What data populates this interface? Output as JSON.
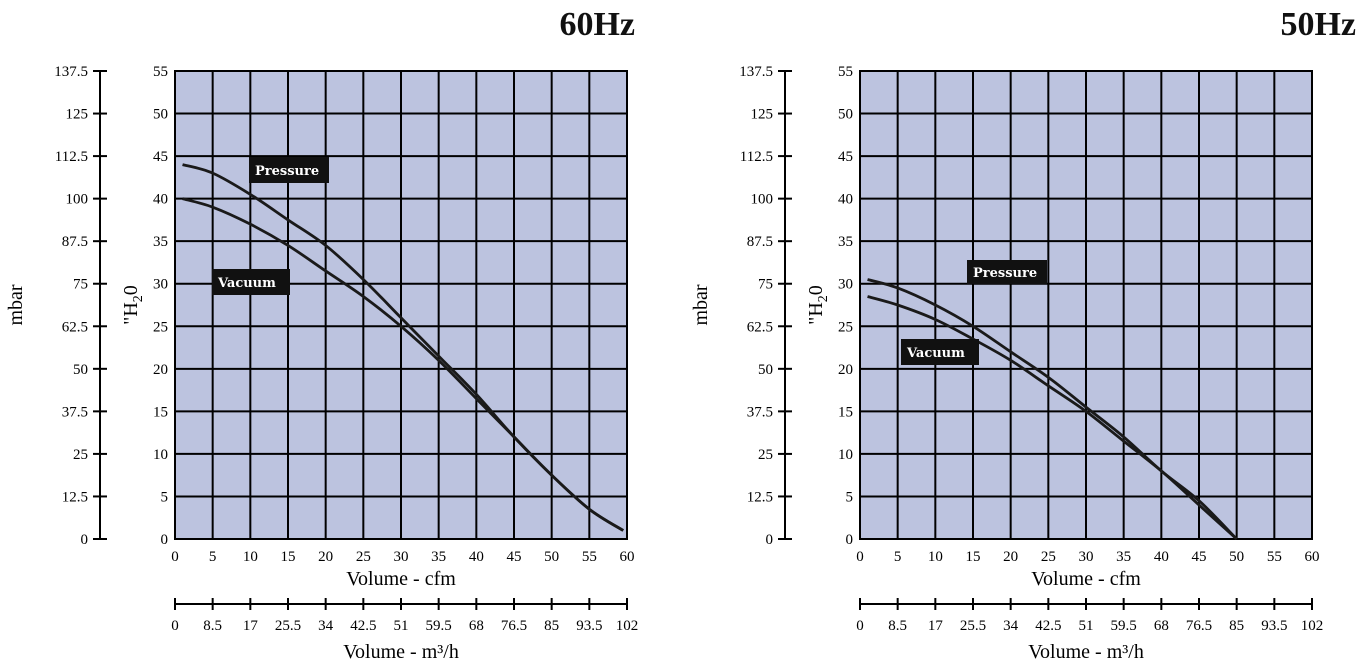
{
  "charts": [
    {
      "frequency_label": "60Hz",
      "mbar_axis_label": "mbar",
      "h2o_axis_label_prefix": "\"H",
      "h2o_axis_label_sub": "2",
      "h2o_axis_label_suffix": "0",
      "cfm_axis_label": "Volume - cfm",
      "m3h_axis_label": "Volume - m³/h",
      "pressure_label": "Pressure",
      "vacuum_label": "Vacuum",
      "colors": {
        "plot_bg": "#bcc3df",
        "grid": "#000000",
        "curve": "#1a1a1a",
        "label_bg": "#111111"
      }
    },
    {
      "frequency_label": "50Hz",
      "mbar_axis_label": "mbar",
      "h2o_axis_label_prefix": "\"H",
      "h2o_axis_label_sub": "2",
      "h2o_axis_label_suffix": "0",
      "cfm_axis_label": "Volume - cfm",
      "m3h_axis_label": "Volume - m³/h",
      "pressure_label": "Pressure",
      "vacuum_label": "Vacuum",
      "colors": {
        "plot_bg": "#bcc3df",
        "grid": "#000000",
        "curve": "#1a1a1a",
        "label_bg": "#111111"
      }
    }
  ],
  "chart_data": [
    {
      "type": "line",
      "title": "60Hz",
      "xlabel": "Volume - cfm",
      "ylabel": "\"H20",
      "secondary_x_label": "Volume - m³/h",
      "secondary_y_label": "mbar",
      "xlim": [
        0,
        60
      ],
      "ylim": [
        0,
        55
      ],
      "x_ticks": [
        "0",
        "5",
        "10",
        "15",
        "20",
        "25",
        "30",
        "35",
        "40",
        "45",
        "50",
        "55",
        "60"
      ],
      "y_ticks": [
        "0",
        "5",
        "10",
        "15",
        "20",
        "25",
        "30",
        "35",
        "40",
        "45",
        "50",
        "55"
      ],
      "m3h_ticks": [
        "0",
        "8.5",
        "17",
        "25.5",
        "34",
        "42.5",
        "51",
        "59.5",
        "68",
        "76.5",
        "85",
        "93.5",
        "102"
      ],
      "mbar_ticks": [
        "0",
        "12.5",
        "25",
        "37.5",
        "50",
        "62.5",
        "75",
        "87.5",
        "100",
        "112.5",
        "125",
        "137.5"
      ],
      "grid": true,
      "series": [
        {
          "name": "Pressure",
          "x": [
            1,
            5,
            10,
            15,
            20,
            25,
            30,
            35,
            40,
            45,
            50,
            55,
            59.5
          ],
          "y": [
            44,
            43,
            40.5,
            37.5,
            34.5,
            30.5,
            26,
            21.5,
            17,
            12,
            7.5,
            3.5,
            1
          ]
        },
        {
          "name": "Vacuum",
          "x": [
            1,
            5,
            10,
            15,
            20,
            25,
            30,
            35,
            40,
            45,
            50,
            55,
            59.5
          ],
          "y": [
            40,
            39,
            37,
            34.5,
            31.5,
            28.5,
            25,
            21,
            16.5,
            12,
            7.5,
            3.5,
            1
          ]
        }
      ]
    },
    {
      "type": "line",
      "title": "50Hz",
      "xlabel": "Volume - cfm",
      "ylabel": "\"H20",
      "secondary_x_label": "Volume - m³/h",
      "secondary_y_label": "mbar",
      "xlim": [
        0,
        60
      ],
      "ylim": [
        0,
        55
      ],
      "x_ticks": [
        "0",
        "5",
        "10",
        "15",
        "20",
        "25",
        "30",
        "35",
        "40",
        "45",
        "50",
        "55",
        "60"
      ],
      "y_ticks": [
        "0",
        "5",
        "10",
        "15",
        "20",
        "25",
        "30",
        "35",
        "40",
        "45",
        "50",
        "55"
      ],
      "m3h_ticks": [
        "0",
        "8.5",
        "17",
        "25.5",
        "34",
        "42.5",
        "51",
        "59.5",
        "68",
        "76.5",
        "85",
        "93.5",
        "102"
      ],
      "mbar_ticks": [
        "0",
        "12.5",
        "25",
        "37.5",
        "50",
        "62.5",
        "75",
        "87.5",
        "100",
        "112.5",
        "125",
        "137.5"
      ],
      "grid": true,
      "series": [
        {
          "name": "Pressure",
          "x": [
            1,
            5,
            10,
            15,
            20,
            25,
            30,
            35,
            40,
            45,
            50
          ],
          "y": [
            30.5,
            29.5,
            27.5,
            25,
            22,
            19,
            15.5,
            12,
            8,
            4.5,
            0
          ]
        },
        {
          "name": "Vacuum",
          "x": [
            1,
            5,
            10,
            15,
            20,
            25,
            30,
            35,
            40,
            45,
            50
          ],
          "y": [
            28.5,
            27.5,
            25.8,
            23.5,
            21,
            18,
            15,
            11.5,
            8,
            4,
            0
          ]
        }
      ]
    }
  ]
}
